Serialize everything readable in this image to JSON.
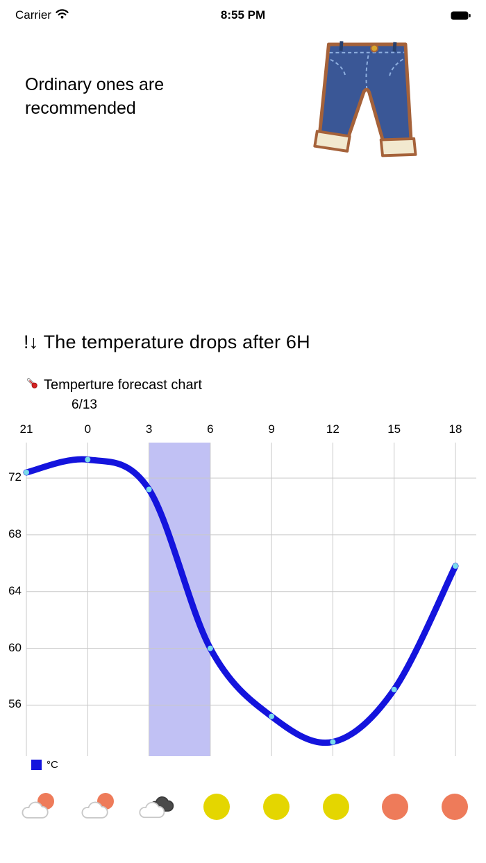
{
  "status_bar": {
    "carrier": "Carrier",
    "time": "8:55 PM"
  },
  "recommendation": {
    "text": "Ordinary ones are recommended"
  },
  "heading": {
    "text": "!↓ The temperature drops after 6H"
  },
  "chart": {
    "title": "Temperture forecast chart",
    "date_label": "6/13",
    "legend": "°C"
  },
  "chart_data": {
    "type": "line",
    "title": "Temperture forecast chart",
    "x_labels": [
      "21",
      "0",
      "3",
      "6",
      "9",
      "12",
      "15",
      "18"
    ],
    "series": [
      {
        "name": "°C",
        "values": [
          72.4,
          73.3,
          71.2,
          60,
          55.2,
          53.4,
          57.1,
          65.8
        ]
      }
    ],
    "y_ticks": [
      56,
      60,
      64,
      68,
      72
    ],
    "ylim": [
      52.4,
      74.5
    ],
    "grid": true,
    "legend_position": "bottom-left",
    "highlight_band": {
      "from": "3",
      "to": "6"
    },
    "line_color": "#1414dd",
    "point_color": "#7adbea",
    "band_color": "rgba(108,108,228,0.42)"
  },
  "weather_row": {
    "icons": [
      {
        "type": "cloud-sun"
      },
      {
        "type": "cloud-sun"
      },
      {
        "type": "clouds"
      },
      {
        "type": "sun",
        "color": "#e4d600"
      },
      {
        "type": "sun",
        "color": "#e4d600"
      },
      {
        "type": "sun",
        "color": "#e4d600"
      },
      {
        "type": "sun",
        "color": "#ee7b5a"
      },
      {
        "type": "sun",
        "color": "#ee7b5a"
      }
    ]
  }
}
